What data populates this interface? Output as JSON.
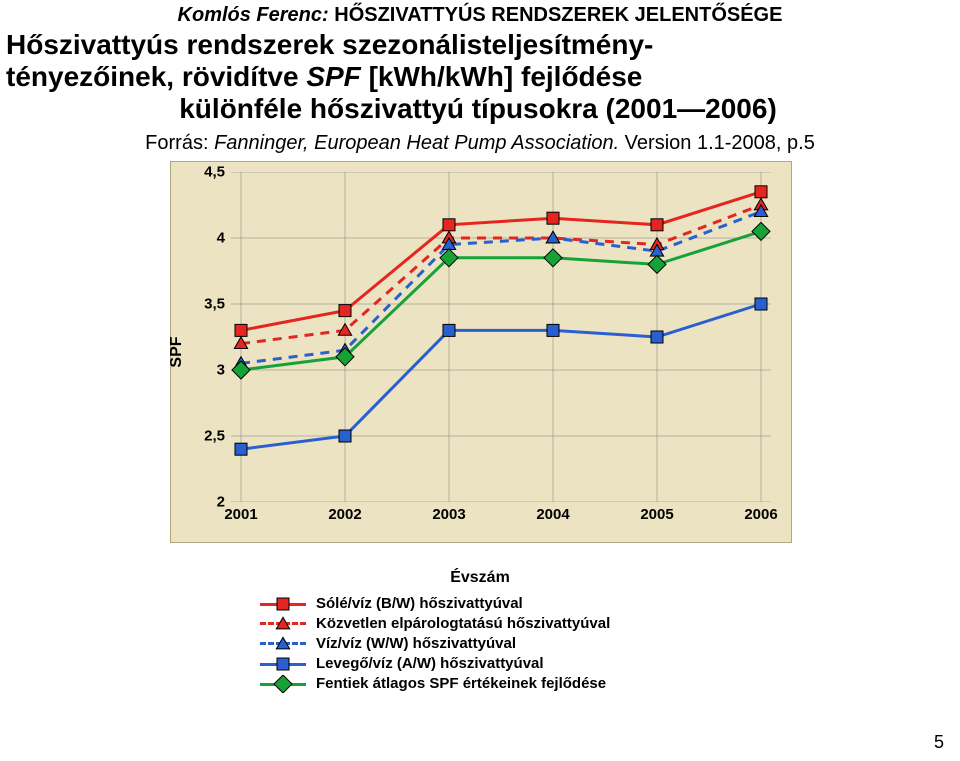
{
  "header": {
    "author": "Komlós Ferenc:",
    "rest": " HŐSZIVATTYÚS RENDSZEREK JELENTŐSÉGE"
  },
  "title": {
    "line1": "Hőszivattyús rendszerek szezonálisteljesítmény-",
    "line2a": "tényezőinek, rövidítve ",
    "line2b": "SPF",
    "line2c": " [kWh/kWh] fejlődése",
    "line3": "különféle hőszivattyú típusokra (2001—2006)"
  },
  "source": {
    "label": "Forrás: ",
    "value": "Fanninger, European Heat Pump Association.",
    "tail": " Version 1.1-2008, p.5"
  },
  "chart": {
    "ylabel": "SPF",
    "xlabel": "Évszám",
    "background": "#ece3c2",
    "border": "#b0a87e",
    "grid_color": "#808080",
    "ylim": [
      2,
      4.5
    ],
    "yticks": [
      2,
      2.5,
      3,
      3.5,
      4,
      4.5
    ],
    "yticklabels": [
      "2",
      "2,5",
      "3",
      "3,5",
      "4",
      "4,5"
    ],
    "xticks": [
      0,
      1,
      2,
      3,
      4,
      5
    ],
    "xticklabels": [
      "2001",
      "2002",
      "2003",
      "2004",
      "2005",
      "2006"
    ],
    "series": [
      {
        "name": "Sólé/víz (B/W) hőszivattyúval",
        "color": "#e52620",
        "dash": false,
        "marker": "square",
        "marker_fill": "#e52620",
        "marker_border": "#000000",
        "y": [
          3.3,
          3.45,
          4.1,
          4.15,
          4.1,
          4.35
        ]
      },
      {
        "name": "Közvetlen elpárologtatású hőszivattyúval",
        "color": "#e52620",
        "dash": true,
        "marker": "triangle",
        "marker_fill": "#e52620",
        "marker_border": "#000000",
        "y": [
          3.2,
          3.3,
          4.0,
          4.0,
          3.95,
          4.25
        ]
      },
      {
        "name": "Víz/víz (W/W) hőszivattyúval",
        "color": "#2a5fd0",
        "dash": true,
        "marker": "triangle",
        "marker_fill": "#2a5fd0",
        "marker_border": "#000000",
        "y": [
          3.05,
          3.15,
          3.95,
          4.0,
          3.9,
          4.2
        ]
      },
      {
        "name": "Levegő/víz (A/W) hőszivattyúval",
        "color": "#2a5fd0",
        "dash": false,
        "marker": "square",
        "marker_fill": "#2a5fd0",
        "marker_border": "#000000",
        "y": [
          2.4,
          2.5,
          3.3,
          3.3,
          3.25,
          3.5
        ]
      },
      {
        "name": "Fentiek átlagos SPF értékeinek fejlődése",
        "color": "#17a238",
        "dash": false,
        "marker": "diamond",
        "marker_fill": "#17a238",
        "marker_border": "#000000",
        "y": [
          3.0,
          3.1,
          3.85,
          3.85,
          3.8,
          4.05
        ]
      }
    ],
    "label_fontsize": 15,
    "line_width": 3,
    "marker_size": 12
  },
  "page_number": "5"
}
